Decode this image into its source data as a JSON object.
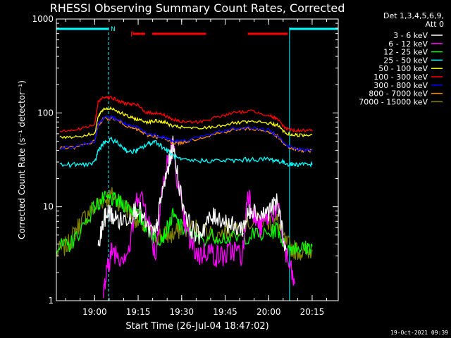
{
  "chart_data": {
    "type": "line",
    "title": "RHESSI Observing Summary Count Rates, Corrected",
    "xlabel": "Start Time (26-Jul-04 18:47:02)",
    "ylabel": "Corrected Count Rate (s⁻¹ detector⁻¹)",
    "yscale": "log",
    "ylim": [
      1,
      1000
    ],
    "xlim_minutes": [
      18.78,
      20.4
    ],
    "x_tick_labels": [
      "19:00",
      "19:15",
      "19:30",
      "19:45",
      "20:00",
      "20:15"
    ],
    "x_tick_hours": [
      19.0,
      19.25,
      19.5,
      19.75,
      20.0,
      20.25
    ],
    "y_tick_labels": [
      "1",
      "10",
      "100",
      "1000"
    ],
    "y_tick_values": [
      1,
      10,
      100,
      1000
    ],
    "legend": {
      "header": [
        "Det 1,3,4,5,6,9,",
        "Att 0"
      ],
      "placement": "right"
    },
    "annotations": {
      "flag_N": "N",
      "flag_F": "F"
    },
    "night_bars_hours": [
      [
        18.78,
        19.08
      ],
      [
        20.12,
        20.4
      ]
    ],
    "saa_lines_hours": [
      19.08,
      20.12,
      20.4
    ],
    "flare_bars_hours": [
      [
        19.22,
        19.29
      ],
      [
        19.33,
        19.64
      ],
      [
        19.88,
        20.11
      ]
    ],
    "series": [
      {
        "name": "3 - 6 keV",
        "color": "#ffffff",
        "x": [
          19.02,
          19.05,
          19.08,
          19.1,
          19.15,
          19.2,
          19.25,
          19.3,
          19.35,
          19.38,
          19.42,
          19.45,
          19.5,
          19.55,
          19.6,
          19.65,
          19.7,
          19.75,
          19.8,
          19.85,
          19.88,
          19.9,
          19.95,
          20.0,
          20.05,
          20.1
        ],
        "y": [
          3.5,
          7,
          9,
          8,
          7,
          8,
          10,
          6,
          5,
          12,
          25,
          45,
          12,
          6,
          5,
          7,
          8,
          7,
          6,
          6,
          8,
          10,
          8,
          9,
          11,
          3.5
        ]
      },
      {
        "name": "6 - 12 keV",
        "color": "#ff00ff",
        "x": [
          19.05,
          19.08,
          19.1,
          19.15,
          19.2,
          19.25,
          19.3,
          19.35,
          19.38,
          19.42,
          19.45,
          19.5,
          19.55,
          19.6,
          19.65,
          19.7,
          19.75,
          19.8,
          19.85,
          19.88,
          19.92,
          19.95,
          20.0,
          20.05,
          20.1,
          20.15
        ],
        "y": [
          1.2,
          2.5,
          3.5,
          3,
          3.5,
          15,
          9,
          3,
          12,
          30,
          45,
          9,
          4,
          3,
          3.5,
          3,
          3,
          3.5,
          3,
          15,
          8,
          6,
          8,
          10,
          3,
          1.5
        ]
      },
      {
        "name": "12 - 25 keV",
        "color": "#00ff00",
        "x": [
          18.78,
          18.85,
          18.9,
          19.0,
          19.05,
          19.1,
          19.15,
          19.2,
          19.25,
          19.3,
          19.35,
          19.4,
          19.45,
          19.5,
          19.55,
          19.6,
          19.7,
          19.8,
          19.9,
          20.0,
          20.05,
          20.1,
          20.15,
          20.2,
          20.25
        ],
        "y": [
          3.8,
          3.8,
          5,
          10,
          12,
          12,
          11,
          10,
          8,
          6,
          4.5,
          5,
          8,
          6,
          5,
          4.5,
          5,
          4.5,
          5,
          5,
          6,
          3.5,
          3.8,
          3.6,
          3.8
        ]
      },
      {
        "name": "25 - 50 keV",
        "color": "#00ffff",
        "x": [
          18.8,
          18.9,
          19.0,
          19.02,
          19.05,
          19.1,
          19.15,
          19.2,
          19.25,
          19.3,
          19.35,
          19.4,
          19.45,
          19.5,
          19.6,
          19.7,
          19.8,
          19.9,
          20.0,
          20.05,
          20.1,
          20.15,
          20.2,
          20.25
        ],
        "y": [
          28,
          28,
          29,
          40,
          47,
          52,
          45,
          38,
          40,
          46,
          50,
          42,
          35,
          31,
          31,
          31,
          31,
          32,
          32,
          31,
          29,
          28,
          29,
          28
        ]
      },
      {
        "name": "50 - 100 keV",
        "color": "#ffff00",
        "x": [
          18.8,
          18.9,
          19.0,
          19.02,
          19.05,
          19.1,
          19.15,
          19.2,
          19.25,
          19.3,
          19.35,
          19.4,
          19.45,
          19.5,
          19.6,
          19.7,
          19.8,
          19.9,
          20.0,
          20.05,
          20.1,
          20.15,
          20.2,
          20.25
        ],
        "y": [
          55,
          56,
          60,
          90,
          110,
          112,
          100,
          90,
          85,
          80,
          82,
          80,
          72,
          70,
          68,
          72,
          78,
          80,
          78,
          74,
          60,
          58,
          58,
          59
        ]
      },
      {
        "name": "100 - 300 keV",
        "color": "#ff0000",
        "x": [
          18.8,
          18.9,
          19.0,
          19.02,
          19.05,
          19.1,
          19.15,
          19.2,
          19.25,
          19.3,
          19.35,
          19.4,
          19.45,
          19.5,
          19.6,
          19.7,
          19.8,
          19.9,
          20.0,
          20.05,
          20.1,
          20.15,
          20.2,
          20.25
        ],
        "y": [
          65,
          66,
          75,
          130,
          150,
          145,
          130,
          125,
          120,
          100,
          100,
          95,
          85,
          80,
          80,
          90,
          100,
          105,
          95,
          85,
          68,
          65,
          65,
          64
        ]
      },
      {
        "name": "300 - 800 keV",
        "color": "#0000ff",
        "x": [
          18.8,
          18.9,
          19.0,
          19.02,
          19.05,
          19.1,
          19.15,
          19.2,
          19.25,
          19.3,
          19.35,
          19.4,
          19.45,
          19.5,
          19.6,
          19.7,
          19.8,
          19.9,
          20.0,
          20.05,
          20.1,
          20.15,
          20.2,
          20.25
        ],
        "y": [
          42,
          44,
          50,
          75,
          88,
          90,
          82,
          72,
          70,
          60,
          58,
          55,
          50,
          50,
          55,
          62,
          68,
          70,
          65,
          58,
          45,
          42,
          40,
          41
        ]
      },
      {
        "name": "800 - 7000 keV",
        "color": "#ff8c00",
        "x": [
          18.8,
          18.9,
          19.0,
          19.02,
          19.05,
          19.1,
          19.15,
          19.2,
          19.25,
          19.3,
          19.35,
          19.4,
          19.45,
          19.5,
          19.6,
          19.7,
          19.8,
          19.9,
          20.0,
          20.05,
          20.1,
          20.15,
          20.2,
          20.25
        ],
        "y": [
          42,
          43,
          50,
          74,
          86,
          88,
          80,
          70,
          66,
          58,
          56,
          53,
          48,
          48,
          54,
          60,
          66,
          68,
          63,
          56,
          44,
          41,
          39,
          40
        ]
      },
      {
        "name": "7000 - 15000 keV",
        "color": "#808000",
        "x": [
          18.78,
          18.85,
          18.9,
          18.95,
          19.0,
          19.05,
          19.1,
          19.15,
          19.2,
          19.25,
          19.3,
          19.35,
          19.4,
          19.45,
          19.5,
          19.6,
          19.7,
          19.8,
          19.9,
          20.0,
          20.05,
          20.1,
          20.15,
          20.2,
          20.25
        ],
        "y": [
          3.2,
          4,
          6,
          8,
          10,
          12,
          13,
          11,
          9,
          7,
          6,
          5,
          5,
          5,
          6,
          6,
          5,
          6,
          7,
          7,
          7,
          4,
          3.5,
          3.3,
          3.5
        ]
      }
    ],
    "footer_date": "19-Oct-2021 09:39"
  }
}
